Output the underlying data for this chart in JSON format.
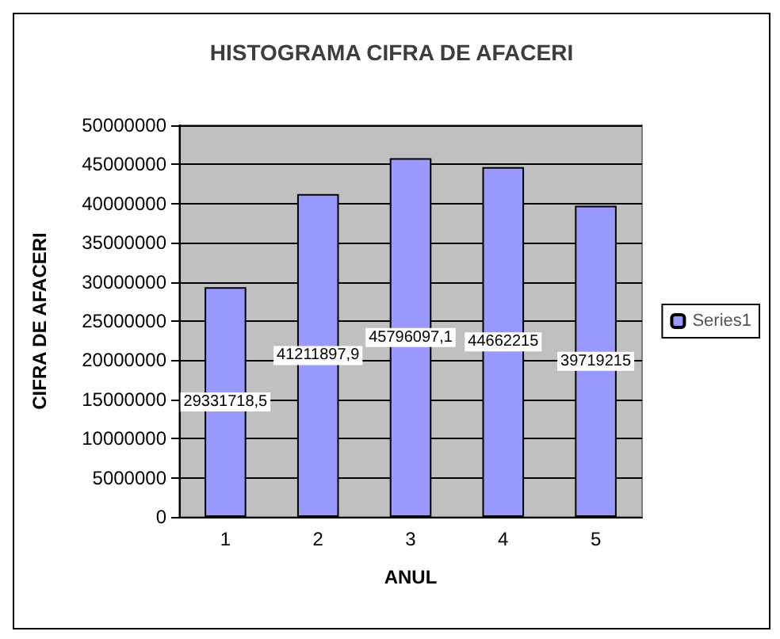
{
  "chart_data": {
    "type": "bar",
    "title": "HISTOGRAMA CIFRA DE AFACERI",
    "xlabel": "ANUL",
    "ylabel": "CIFRA DE AFACERI",
    "categories": [
      "1",
      "2",
      "3",
      "4",
      "5"
    ],
    "series": [
      {
        "name": "Series1",
        "color": "#9999ff",
        "values": [
          29331718.5,
          41211897.9,
          45796097.1,
          44662215,
          39719215
        ],
        "value_labels": [
          "29331718,5",
          "41211897,9",
          "45796097,1",
          "44662215",
          "39719215"
        ]
      }
    ],
    "ylim": [
      0,
      50000000
    ],
    "yticks": [
      0,
      5000000,
      10000000,
      15000000,
      20000000,
      25000000,
      30000000,
      35000000,
      40000000,
      45000000,
      50000000
    ],
    "grid": "y",
    "legend": "right"
  }
}
